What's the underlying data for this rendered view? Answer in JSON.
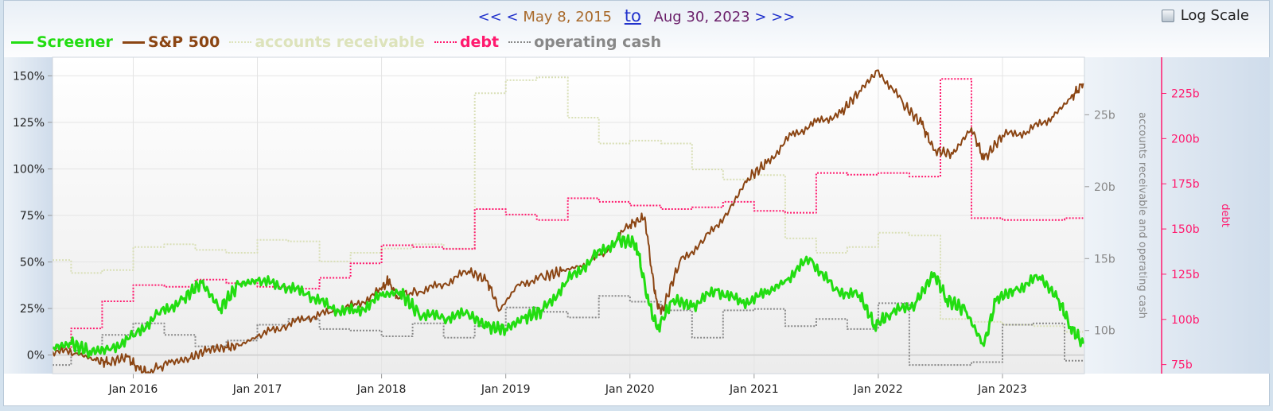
{
  "nav": {
    "first": "<<",
    "prev": "<",
    "start_date": "May 8, 2015",
    "to": "to",
    "end_date": "Aug 30, 2023",
    "next": ">",
    "last": ">>"
  },
  "log_scale": {
    "label": "Log Scale",
    "checked": false
  },
  "legend": [
    {
      "label": "Screener",
      "color": "#22dd11",
      "style": "solid"
    },
    {
      "label": "S&P 500",
      "color": "#8b4513",
      "style": "solid"
    },
    {
      "label": "accounts receivable",
      "color": "#dde3bb",
      "style": "dotted"
    },
    {
      "label": "debt",
      "color": "#ff1a6e",
      "style": "dotted"
    },
    {
      "label": "operating cash",
      "color": "#888888",
      "style": "dotted"
    }
  ],
  "chart_data": {
    "type": "line",
    "x_range": [
      "2015-05-08",
      "2023-08-30"
    ],
    "x_ticks": [
      "Jan 2016",
      "Jan 2017",
      "Jan 2018",
      "Jan 2019",
      "Jan 2020",
      "Jan 2021",
      "Jan 2022",
      "Jan 2023"
    ],
    "left_axis": {
      "range": [
        -10,
        160
      ],
      "ticks": [
        0,
        25,
        50,
        75,
        100,
        125,
        150
      ],
      "tick_labels": [
        "0%",
        "25%",
        "50%",
        "75%",
        "100%",
        "125%",
        "150%"
      ]
    },
    "mid_axis": {
      "label": "accounts receivable and operating cash",
      "range": [
        7,
        29
      ],
      "ticks": [
        10,
        15,
        20,
        25
      ],
      "tick_labels": [
        "10b",
        "15b",
        "20b",
        "25b"
      ]
    },
    "right_axis": {
      "label": "debt",
      "range": [
        70,
        245
      ],
      "ticks": [
        75,
        100,
        125,
        150,
        175,
        200,
        225
      ],
      "tick_labels": [
        "75b",
        "100b",
        "125b",
        "150b",
        "175b",
        "200b",
        "225b"
      ]
    },
    "series": [
      {
        "name": "S&P 500",
        "axis": "left",
        "color": "#8b4513",
        "width": 2,
        "dash": "",
        "x": [
          2015.35,
          2015.55,
          2015.7,
          2015.8,
          2015.95,
          2016.05,
          2016.12,
          2016.3,
          2016.45,
          2016.6,
          2016.75,
          2016.85,
          2017.0,
          2017.2,
          2017.4,
          2017.6,
          2017.8,
          2018.0,
          2018.05,
          2018.12,
          2018.3,
          2018.5,
          2018.7,
          2018.85,
          2018.95,
          2019.1,
          2019.3,
          2019.45,
          2019.6,
          2019.8,
          2020.0,
          2020.12,
          2020.2,
          2020.25,
          2020.4,
          2020.6,
          2020.8,
          2020.95,
          2021.1,
          2021.3,
          2021.5,
          2021.7,
          2021.85,
          2022.0,
          2022.2,
          2022.35,
          2022.45,
          2022.6,
          2022.75,
          2022.85,
          2023.0,
          2023.2,
          2023.4,
          2023.55,
          2023.65
        ],
        "y": [
          2,
          1,
          -3,
          -4,
          -1,
          -8,
          -9,
          -4,
          -2,
          3,
          4,
          5,
          10,
          15,
          20,
          23,
          27,
          35,
          40,
          32,
          34,
          38,
          45,
          40,
          24,
          38,
          42,
          45,
          48,
          55,
          70,
          74,
          33,
          22,
          50,
          62,
          78,
          95,
          103,
          118,
          125,
          130,
          142,
          153,
          135,
          124,
          110,
          108,
          122,
          105,
          118,
          120,
          128,
          138,
          146
        ]
      },
      {
        "name": "Screener",
        "axis": "left",
        "color": "#22dd11",
        "width": 3,
        "dash": "",
        "x": [
          2015.35,
          2015.5,
          2015.65,
          2015.8,
          2016.0,
          2016.2,
          2016.4,
          2016.55,
          2016.7,
          2016.85,
          2017.0,
          2017.2,
          2017.4,
          2017.6,
          2017.8,
          2018.0,
          2018.15,
          2018.3,
          2018.5,
          2018.7,
          2018.85,
          2019.0,
          2019.15,
          2019.3,
          2019.5,
          2019.7,
          2019.9,
          2020.05,
          2020.15,
          2020.22,
          2020.35,
          2020.5,
          2020.7,
          2020.9,
          2021.1,
          2021.25,
          2021.45,
          2021.65,
          2021.85,
          2021.97,
          2022.1,
          2022.3,
          2022.45,
          2022.55,
          2022.7,
          2022.85,
          2022.95,
          2023.1,
          2023.3,
          2023.45,
          2023.55,
          2023.65
        ],
        "y": [
          4,
          6,
          2,
          3,
          10,
          22,
          30,
          39,
          25,
          38,
          40,
          37,
          33,
          25,
          23,
          32,
          34,
          22,
          20,
          22,
          15,
          14,
          20,
          24,
          40,
          52,
          62,
          60,
          28,
          14,
          30,
          26,
          35,
          28,
          33,
          40,
          52,
          35,
          32,
          16,
          22,
          28,
          44,
          30,
          24,
          5,
          30,
          35,
          42,
          30,
          15,
          6
        ]
      },
      {
        "name": "accounts receivable",
        "axis": "mid",
        "color": "#d9dfb6",
        "width": 2,
        "dash": "2,2",
        "step": true,
        "x": [
          2015.35,
          2015.5,
          2015.75,
          2016.0,
          2016.25,
          2016.5,
          2016.75,
          2017.0,
          2017.25,
          2017.5,
          2017.75,
          2018.0,
          2018.25,
          2018.5,
          2018.75,
          2019.0,
          2019.25,
          2019.5,
          2019.75,
          2020.0,
          2020.25,
          2020.5,
          2020.75,
          2021.0,
          2021.25,
          2021.5,
          2021.75,
          2022.0,
          2022.25,
          2022.5,
          2022.75,
          2023.0,
          2023.25,
          2023.5,
          2023.65
        ],
        "y": [
          14.9,
          14.0,
          14.2,
          15.8,
          16.0,
          15.6,
          15.4,
          16.3,
          16.2,
          14.8,
          15.4,
          15.7,
          16.0,
          15.7,
          26.5,
          27.4,
          27.6,
          24.8,
          23.0,
          23.2,
          23.0,
          21.2,
          20.5,
          20.8,
          16.4,
          15.4,
          15.8,
          16.8,
          16.6,
          10.8,
          10.6,
          10.4,
          10.3,
          9.9,
          9.9
        ]
      },
      {
        "name": "debt",
        "axis": "right",
        "color": "#ff1a6e",
        "width": 2,
        "dash": "2,2",
        "step": true,
        "x": [
          2015.35,
          2015.5,
          2015.75,
          2016.0,
          2016.25,
          2016.5,
          2016.75,
          2017.0,
          2017.25,
          2017.5,
          2017.75,
          2018.0,
          2018.25,
          2018.5,
          2018.75,
          2019.0,
          2019.25,
          2019.5,
          2019.75,
          2020.0,
          2020.25,
          2020.5,
          2020.75,
          2021.0,
          2021.25,
          2021.5,
          2021.75,
          2022.0,
          2022.25,
          2022.5,
          2022.75,
          2023.0,
          2023.25,
          2023.5,
          2023.65
        ],
        "y": [
          84,
          95,
          110,
          119,
          118,
          122,
          120,
          118,
          117,
          123,
          131,
          141,
          140,
          139,
          161,
          158,
          155,
          167,
          165,
          163,
          161,
          162,
          165,
          160,
          159,
          181,
          180,
          181,
          179,
          233,
          156,
          155,
          155,
          156,
          156
        ]
      },
      {
        "name": "operating cash",
        "axis": "mid",
        "color": "#888888",
        "width": 2,
        "dash": "2,2",
        "step": true,
        "x": [
          2015.35,
          2015.5,
          2015.75,
          2016.0,
          2016.25,
          2016.5,
          2016.75,
          2017.0,
          2017.25,
          2017.5,
          2017.75,
          2018.0,
          2018.25,
          2018.5,
          2018.75,
          2019.0,
          2019.25,
          2019.5,
          2019.75,
          2020.0,
          2020.25,
          2020.5,
          2020.75,
          2021.0,
          2021.25,
          2021.5,
          2021.75,
          2022.0,
          2022.25,
          2022.5,
          2022.75,
          2023.0,
          2023.25,
          2023.5,
          2023.65
        ],
        "y": [
          7.6,
          8.6,
          9.7,
          10.5,
          9.7,
          8.9,
          9.3,
          10.4,
          10.8,
          10.1,
          10.0,
          9.6,
          10.5,
          9.5,
          10.3,
          11.6,
          11.3,
          10.9,
          12.4,
          12.0,
          11.4,
          9.5,
          11.4,
          11.5,
          10.3,
          10.8,
          10.1,
          11.9,
          7.6,
          7.6,
          7.8,
          10.4,
          10.5,
          7.9,
          7.9
        ]
      }
    ],
    "grid": true,
    "legend_position": "top-left"
  }
}
